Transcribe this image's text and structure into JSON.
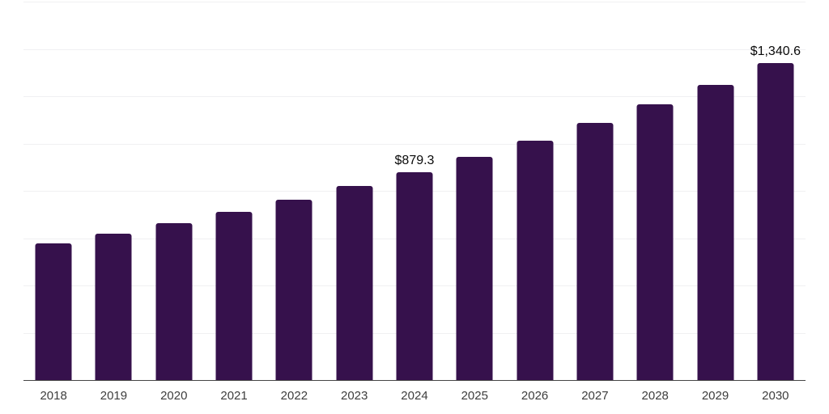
{
  "chart_data": {
    "type": "bar",
    "title": "",
    "xlabel": "",
    "ylabel": "",
    "categories": [
      "2018",
      "2019",
      "2020",
      "2021",
      "2022",
      "2023",
      "2024",
      "2025",
      "2026",
      "2027",
      "2028",
      "2029",
      "2030"
    ],
    "values": [
      576.6,
      618.6,
      663.6,
      711.9,
      763.7,
      819.3,
      879.3,
      943.3,
      1012.0,
      1085.6,
      1164.7,
      1249.4,
      1340.6
    ],
    "data_labels": {
      "2024": "$879.3",
      "2030": "$1,340.6"
    },
    "ylim": [
      0,
      1600
    ],
    "grid_step": 200,
    "grid": true,
    "legend": false,
    "colors": {
      "bar": "#36114c",
      "gridline": "#f0f0f2",
      "axis_line": "#454545",
      "tick_label": "#3d3d3d",
      "data_label": "#0a0a0a",
      "background": "#ffffff"
    }
  }
}
